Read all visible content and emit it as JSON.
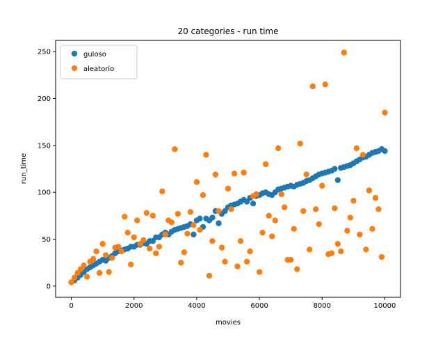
{
  "chart_data": {
    "type": "scatter",
    "title": "20 categories - run time",
    "xlabel": "movies",
    "ylabel": "run_time",
    "xlim": [
      -500,
      10500
    ],
    "ylim": [
      -12,
      262
    ],
    "xticks": [
      0,
      2000,
      4000,
      6000,
      8000,
      10000
    ],
    "yticks": [
      0,
      50,
      100,
      150,
      200,
      250
    ],
    "grid": false,
    "legend_position": "top-left",
    "series": [
      {
        "name": "guloso",
        "color": "#1f77b4",
        "x": [
          0,
          100,
          200,
          300,
          400,
          500,
          600,
          700,
          800,
          900,
          1000,
          1100,
          1200,
          1300,
          1400,
          1500,
          1600,
          1700,
          1800,
          1900,
          2000,
          2100,
          2200,
          2300,
          2400,
          2500,
          2600,
          2700,
          2800,
          2900,
          3000,
          3100,
          3200,
          3300,
          3400,
          3500,
          3600,
          3700,
          3800,
          3900,
          4000,
          4100,
          4200,
          4300,
          4400,
          4500,
          4600,
          4700,
          4800,
          4900,
          5000,
          5100,
          5200,
          5300,
          5400,
          5500,
          5600,
          5700,
          5800,
          5900,
          6000,
          6100,
          6200,
          6300,
          6400,
          6500,
          6600,
          6700,
          6800,
          6900,
          7000,
          7100,
          7200,
          7300,
          7400,
          7500,
          7600,
          7700,
          7800,
          7900,
          8000,
          8100,
          8200,
          8300,
          8400,
          8500,
          8600,
          8700,
          8800,
          8900,
          9000,
          9100,
          9200,
          9300,
          9400,
          9500,
          9600,
          9700,
          9800,
          9900,
          10000
        ],
        "y": [
          4,
          6,
          9,
          12,
          15,
          18,
          20,
          22,
          24,
          26,
          28,
          27,
          30,
          32,
          35,
          37,
          38,
          39,
          40,
          42,
          42,
          44,
          44,
          46,
          45,
          48,
          48,
          52,
          52,
          55,
          57,
          55,
          58,
          60,
          61,
          62,
          63,
          64,
          66,
          55,
          70,
          72,
          63,
          72,
          70,
          73,
          80,
          67,
          77,
          80,
          84,
          86,
          87,
          88,
          90,
          92,
          90,
          94,
          88,
          96,
          97,
          99,
          100,
          98,
          97,
          100,
          103,
          104,
          105,
          106,
          107,
          106,
          108,
          109,
          110,
          112,
          113,
          115,
          117,
          119,
          120,
          121,
          122,
          123,
          125,
          113,
          126,
          127,
          128,
          129,
          131,
          133,
          135,
          137,
          138,
          140,
          142,
          143,
          144,
          146,
          144
        ]
      },
      {
        "name": "aleatorio",
        "color": "#ff7f0e",
        "x": [
          0,
          100,
          200,
          300,
          400,
          500,
          600,
          700,
          800,
          900,
          1000,
          1100,
          1200,
          1300,
          1400,
          1500,
          1600,
          1700,
          1800,
          1900,
          2000,
          2100,
          2200,
          2300,
          2400,
          2500,
          2600,
          2700,
          2800,
          2900,
          3000,
          3100,
          3200,
          3300,
          3400,
          3500,
          3600,
          3700,
          3800,
          3900,
          4000,
          4100,
          4200,
          4300,
          4400,
          4500,
          4600,
          4700,
          4800,
          4900,
          5000,
          5100,
          5200,
          5300,
          5400,
          5500,
          5600,
          5700,
          5800,
          5900,
          6000,
          6100,
          6200,
          6300,
          6400,
          6500,
          6600,
          6700,
          6800,
          6900,
          7000,
          7100,
          7200,
          7300,
          7400,
          7500,
          7600,
          7700,
          7800,
          7900,
          8000,
          8100,
          8200,
          8300,
          8400,
          8500,
          8600,
          8700,
          8800,
          8900,
          9000,
          9100,
          9200,
          9300,
          9400,
          9500,
          9600,
          9700,
          9800,
          9900,
          10000
        ],
        "y": [
          4,
          9,
          14,
          18,
          22,
          10,
          26,
          29,
          37,
          14,
          45,
          33,
          15,
          30,
          41,
          42,
          37,
          74,
          57,
          23,
          52,
          70,
          45,
          49,
          78,
          40,
          75,
          35,
          42,
          101,
          55,
          70,
          68,
          146,
          77,
          25,
          36,
          56,
          79,
          65,
          111,
          60,
          97,
          140,
          11,
          48,
          119,
          80,
          41,
          26,
          104,
          82,
          120,
          21,
          48,
          121,
          26,
          37,
          96,
          98,
          15,
          57,
          130,
          75,
          53,
          70,
          147,
          98,
          84,
          28,
          28,
          61,
          18,
          152,
          80,
          119,
          39,
          213,
          82,
          66,
          107,
          215,
          34,
          35,
          83,
          45,
          37,
          249,
          59,
          73,
          91,
          147,
          55,
          140,
          39,
          102,
          61,
          94,
          82,
          31,
          185
        ]
      }
    ]
  }
}
